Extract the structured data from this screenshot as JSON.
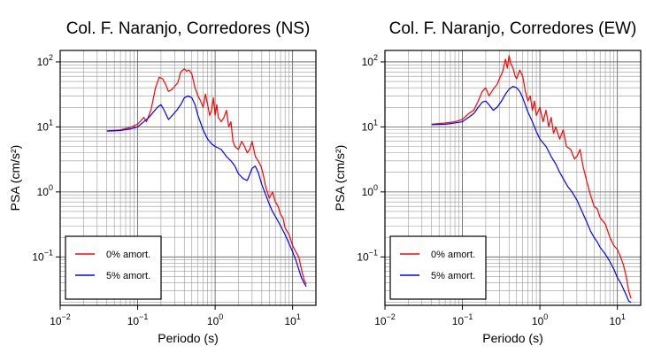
{
  "chart_data": [
    {
      "type": "line",
      "title": "Col. F. Naranjo, Corredores (NS)",
      "xlabel": "Periodo (s)",
      "ylabel": "PSA (cm/s²)",
      "xscale": "log",
      "yscale": "log",
      "xlim": [
        0.01,
        20
      ],
      "ylim": [
        0.018,
        150
      ],
      "xticks": [
        {
          "value": 0.01,
          "base": "10",
          "exp": "−2"
        },
        {
          "value": 0.1,
          "base": "10",
          "exp": "−1"
        },
        {
          "value": 1,
          "base": "10",
          "exp": "0"
        },
        {
          "value": 10,
          "base": "10",
          "exp": "1"
        }
      ],
      "yticks": [
        {
          "value": 0.1,
          "base": "10",
          "exp": "−1"
        },
        {
          "value": 1,
          "base": "10",
          "exp": "0"
        },
        {
          "value": 10,
          "base": "10",
          "exp": "1"
        },
        {
          "value": 100,
          "base": "10",
          "exp": "2"
        }
      ],
      "grid": true,
      "legend_position": "bottom-left",
      "series": [
        {
          "name": "0% amort.",
          "color": "#ff0000",
          "x": [
            0.04,
            0.06,
            0.08,
            0.1,
            0.12,
            0.13,
            0.15,
            0.17,
            0.19,
            0.21,
            0.23,
            0.25,
            0.28,
            0.3,
            0.33,
            0.36,
            0.4,
            0.43,
            0.46,
            0.5,
            0.55,
            0.6,
            0.65,
            0.7,
            0.75,
            0.8,
            0.85,
            0.9,
            0.95,
            1.0,
            1.05,
            1.1,
            1.2,
            1.3,
            1.4,
            1.5,
            1.6,
            1.7,
            1.8,
            2.0,
            2.2,
            2.4,
            2.6,
            2.8,
            3.0,
            3.3,
            3.6,
            3.9,
            4.2,
            4.5,
            5.0,
            5.5,
            6.0,
            6.5,
            7.0,
            7.5,
            8.0,
            9.0,
            10.0,
            11.0,
            12.0,
            13.0,
            14.0,
            15.0
          ],
          "y": [
            8.7,
            9.0,
            9.8,
            11.0,
            14.0,
            12.0,
            19.0,
            40.0,
            58.0,
            55.0,
            45.0,
            35.0,
            38.0,
            42.0,
            48.0,
            70.0,
            78.0,
            72.0,
            75.0,
            65.0,
            40.0,
            30.0,
            25.0,
            20.0,
            32.0,
            22.0,
            15.0,
            18.0,
            28.0,
            15.0,
            22.0,
            14.0,
            12.0,
            14.0,
            18.0,
            10.0,
            12.0,
            6.0,
            5.0,
            4.5,
            6.0,
            5.0,
            4.0,
            4.5,
            6.0,
            3.5,
            3.0,
            2.5,
            1.8,
            1.2,
            0.8,
            1.0,
            0.7,
            0.6,
            0.45,
            0.4,
            0.28,
            0.22,
            0.15,
            0.12,
            0.1,
            0.065,
            0.045,
            0.038
          ]
        },
        {
          "name": "5% amort.",
          "color": "#0000ff",
          "x": [
            0.04,
            0.06,
            0.08,
            0.1,
            0.12,
            0.14,
            0.16,
            0.18,
            0.2,
            0.22,
            0.25,
            0.28,
            0.32,
            0.36,
            0.4,
            0.45,
            0.5,
            0.55,
            0.6,
            0.7,
            0.8,
            0.9,
            1.0,
            1.2,
            1.4,
            1.6,
            1.8,
            2.0,
            2.3,
            2.6,
            3.0,
            3.3,
            3.6,
            4.0,
            4.5,
            5.0,
            5.5,
            6.0,
            7.0,
            8.0,
            9.0,
            10.0,
            11.0,
            12.0,
            13.0,
            14.0,
            15.0
          ],
          "y": [
            8.6,
            8.8,
            9.3,
            10.0,
            12.0,
            14.0,
            17.0,
            20.0,
            22.0,
            18.0,
            13.0,
            15.0,
            18.0,
            22.0,
            28.0,
            30.0,
            28.0,
            22.0,
            15.0,
            9.0,
            6.5,
            5.5,
            5.0,
            4.5,
            3.5,
            3.0,
            2.5,
            1.9,
            1.6,
            1.5,
            2.3,
            2.5,
            2.0,
            1.3,
            0.9,
            0.65,
            0.5,
            0.42,
            0.3,
            0.22,
            0.16,
            0.12,
            0.09,
            0.065,
            0.048,
            0.04,
            0.035
          ]
        }
      ]
    },
    {
      "type": "line",
      "title": "Col. F. Naranjo, Corredores (EW)",
      "xlabel": "Periodo (s)",
      "ylabel": "PSA (cm/s²)",
      "xscale": "log",
      "yscale": "log",
      "xlim": [
        0.01,
        20
      ],
      "ylim": [
        0.018,
        150
      ],
      "xticks": [
        {
          "value": 0.01,
          "base": "10",
          "exp": "−2"
        },
        {
          "value": 0.1,
          "base": "10",
          "exp": "−1"
        },
        {
          "value": 1,
          "base": "10",
          "exp": "0"
        },
        {
          "value": 10,
          "base": "10",
          "exp": "1"
        }
      ],
      "yticks": [
        {
          "value": 0.1,
          "base": "10",
          "exp": "−1"
        },
        {
          "value": 1,
          "base": "10",
          "exp": "0"
        },
        {
          "value": 10,
          "base": "10",
          "exp": "1"
        },
        {
          "value": 100,
          "base": "10",
          "exp": "2"
        }
      ],
      "grid": true,
      "legend_position": "bottom-left",
      "series": [
        {
          "name": "0% amort.",
          "color": "#ff0000",
          "x": [
            0.04,
            0.06,
            0.08,
            0.1,
            0.12,
            0.14,
            0.16,
            0.18,
            0.2,
            0.22,
            0.25,
            0.28,
            0.3,
            0.33,
            0.36,
            0.38,
            0.4,
            0.42,
            0.45,
            0.48,
            0.5,
            0.55,
            0.6,
            0.65,
            0.7,
            0.75,
            0.8,
            0.85,
            0.9,
            1.0,
            1.1,
            1.2,
            1.3,
            1.4,
            1.5,
            1.6,
            1.8,
            2.0,
            2.2,
            2.5,
            2.8,
            3.0,
            3.3,
            3.6,
            4.0,
            4.5,
            5.0,
            5.5,
            6.0,
            7.0,
            8.0,
            9.0,
            10.0,
            11.0,
            12.0,
            13.0,
            14.0,
            15.0
          ],
          "y": [
            11.0,
            11.5,
            12.0,
            13.0,
            16.0,
            18.0,
            25.0,
            35.0,
            40.0,
            30.0,
            38.0,
            45.0,
            55.0,
            70.0,
            110.0,
            80.0,
            125.0,
            95.0,
            80.0,
            60.0,
            55.0,
            75.0,
            60.0,
            35.0,
            25.0,
            30.0,
            18.0,
            25.0,
            15.0,
            20.0,
            12.0,
            18.0,
            10.0,
            14.0,
            8.0,
            10.0,
            6.5,
            9.0,
            5.0,
            4.5,
            3.2,
            3.5,
            4.5,
            2.5,
            1.5,
            0.9,
            0.6,
            0.55,
            0.4,
            0.32,
            0.2,
            0.15,
            0.13,
            0.1,
            0.075,
            0.05,
            0.03,
            0.023
          ]
        },
        {
          "name": "5% amort.",
          "color": "#0000ff",
          "x": [
            0.04,
            0.06,
            0.08,
            0.1,
            0.12,
            0.14,
            0.16,
            0.18,
            0.2,
            0.22,
            0.25,
            0.28,
            0.32,
            0.36,
            0.4,
            0.45,
            0.5,
            0.55,
            0.6,
            0.7,
            0.8,
            0.9,
            1.0,
            1.2,
            1.4,
            1.6,
            1.8,
            2.0,
            2.3,
            2.6,
            3.0,
            3.5,
            4.0,
            4.5,
            5.0,
            5.5,
            6.0,
            7.0,
            8.0,
            9.0,
            10.0,
            11.0,
            12.0,
            13.0,
            14.0,
            15.0
          ],
          "y": [
            10.8,
            11.0,
            11.5,
            12.0,
            14.0,
            16.0,
            20.0,
            24.0,
            25.0,
            22.0,
            18.0,
            20.0,
            25.0,
            32.0,
            38.0,
            42.0,
            40.0,
            35.0,
            28.0,
            17.0,
            12.0,
            8.5,
            6.5,
            5.0,
            3.5,
            2.7,
            2.0,
            1.6,
            1.2,
            1.0,
            0.75,
            0.5,
            0.35,
            0.25,
            0.2,
            0.17,
            0.14,
            0.11,
            0.085,
            0.065,
            0.048,
            0.04,
            0.032,
            0.026,
            0.021,
            0.02
          ]
        }
      ]
    }
  ]
}
